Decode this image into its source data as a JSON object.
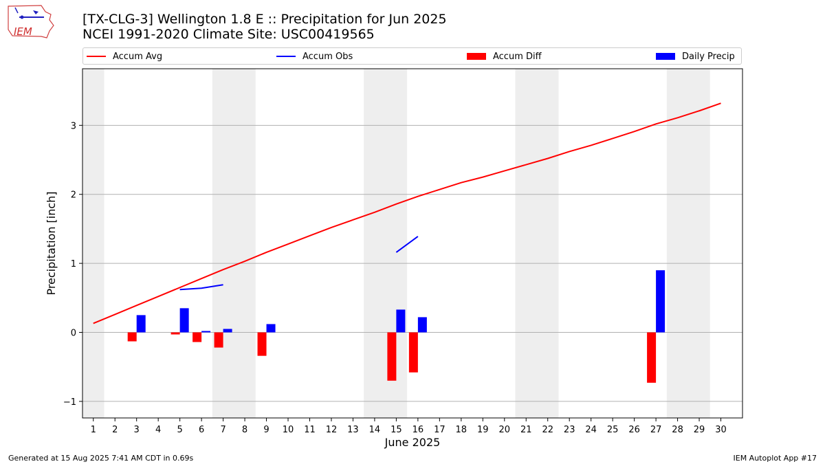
{
  "header": {
    "title_line1": "[TX-CLG-3] Wellington 1.8 E :: Precipitation for Jun 2025",
    "title_line2": "NCEI 1991-2020 Climate Site: USC00419565",
    "logo_text": "IEM"
  },
  "legend": {
    "items": [
      {
        "label": "Accum Avg",
        "kind": "line",
        "color": "#ff0000"
      },
      {
        "label": "Accum Obs",
        "kind": "line",
        "color": "#0000ff"
      },
      {
        "label": "Accum Diff",
        "kind": "box",
        "color": "#ff0000"
      },
      {
        "label": "Daily Precip",
        "kind": "box",
        "color": "#0000ff"
      }
    ]
  },
  "footer": {
    "left": "Generated at 15 Aug 2025 7:41 AM CDT in 0.69s",
    "right": "IEM Autoplot App #17"
  },
  "chart_data": {
    "type": "bar",
    "xlabel": "June 2025",
    "ylabel": "Precipitation [inch]",
    "xlim": [
      0.5,
      31
    ],
    "ylim": [
      -1.24,
      3.82
    ],
    "x_ticks": [
      1,
      2,
      3,
      4,
      5,
      6,
      7,
      8,
      9,
      10,
      11,
      12,
      13,
      14,
      15,
      16,
      17,
      18,
      19,
      20,
      21,
      22,
      23,
      24,
      25,
      26,
      27,
      28,
      29,
      30
    ],
    "y_ticks": [
      -1,
      0,
      1,
      2,
      3
    ],
    "y_tick_labels": [
      "−1",
      "0",
      "1",
      "2",
      "3"
    ],
    "grid": "horizontal",
    "weekend_shading": [
      [
        0.5,
        1.5
      ],
      [
        6.5,
        8.5
      ],
      [
        13.5,
        15.5
      ],
      [
        20.5,
        22.5
      ],
      [
        27.5,
        29.5
      ]
    ],
    "colors": {
      "accum_avg": "#ff0000",
      "accum_obs": "#0000ff",
      "accum_diff": "#ff0000",
      "daily_precip": "#0000ff",
      "shade": "#eeeeee",
      "grid": "#b0b0b0"
    },
    "accum_avg": {
      "x": [
        1,
        2,
        3,
        4,
        5,
        6,
        7,
        8,
        9,
        10,
        11,
        12,
        13,
        14,
        15,
        16,
        17,
        18,
        19,
        20,
        21,
        22,
        23,
        24,
        25,
        26,
        27,
        28,
        29,
        30
      ],
      "y": [
        0.13,
        0.26,
        0.39,
        0.52,
        0.65,
        0.78,
        0.91,
        1.03,
        1.16,
        1.28,
        1.4,
        1.52,
        1.63,
        1.74,
        1.86,
        1.97,
        2.07,
        2.17,
        2.25,
        2.34,
        2.43,
        2.52,
        2.62,
        2.71,
        2.81,
        2.91,
        3.02,
        3.11,
        3.21,
        3.32
      ]
    },
    "accum_obs": [
      {
        "x": [
          5,
          6,
          7
        ],
        "y": [
          0.62,
          0.64,
          0.69
        ]
      },
      {
        "x": [
          15,
          16
        ],
        "y": [
          1.16,
          1.39
        ]
      }
    ],
    "accum_diff": {
      "x": [
        3,
        5,
        6,
        7,
        9,
        15,
        16,
        27
      ],
      "values": [
        -0.13,
        -0.03,
        -0.14,
        -0.22,
        -0.34,
        -0.7,
        -0.58,
        -0.73
      ]
    },
    "daily_precip": {
      "x": [
        3,
        5,
        6,
        7,
        9,
        15,
        16,
        27
      ],
      "values": [
        0.25,
        0.35,
        0.02,
        0.05,
        0.12,
        0.33,
        0.22,
        0.9
      ]
    }
  }
}
